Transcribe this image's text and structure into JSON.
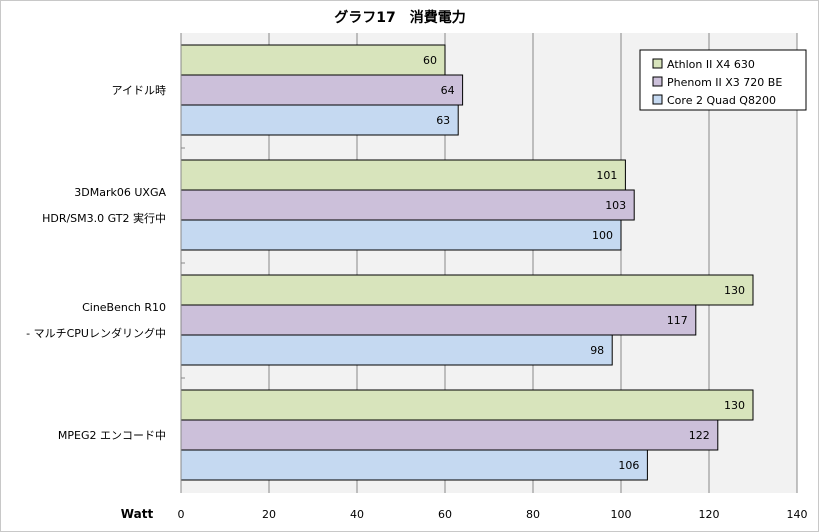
{
  "chart_data": {
    "type": "bar",
    "orientation": "horizontal",
    "title": "グラフ17　消費電力",
    "xlabel": "Watt",
    "xlim": [
      0,
      140
    ],
    "xticks": [
      0,
      20,
      40,
      60,
      80,
      100,
      120,
      140
    ],
    "grid": true,
    "legend_position": "top-right",
    "categories": [
      [
        "アイドル時"
      ],
      [
        "3DMark06 UXGA",
        "HDR/SM3.0 GT2 実行中"
      ],
      [
        "CineBench R10",
        "- マルチCPUレンダリング中"
      ],
      [
        "MPEG2 エンコード中"
      ]
    ],
    "series": [
      {
        "name": "Athlon II X4 630",
        "color": "#d8e4bc",
        "values": [
          60,
          101,
          130,
          130
        ]
      },
      {
        "name": "Phenom II X3 720 BE",
        "color": "#ccc0da",
        "values": [
          64,
          103,
          117,
          122
        ]
      },
      {
        "name": "Core 2 Quad Q8200",
        "color": "#c5d9f1",
        "values": [
          63,
          100,
          98,
          106
        ]
      }
    ]
  }
}
